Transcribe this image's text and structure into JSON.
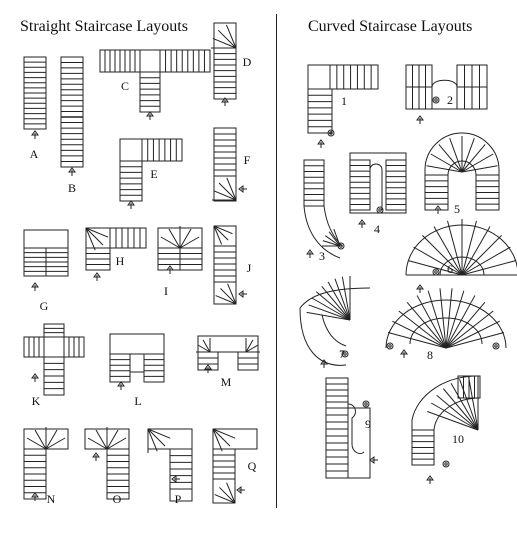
{
  "titles": {
    "straight": "Straight Staircase Layouts",
    "curved": "Curved Staircase Layouts"
  },
  "straight_labels": [
    "A",
    "B",
    "C",
    "D",
    "E",
    "F",
    "G",
    "H",
    "I",
    "J",
    "K",
    "L",
    "M",
    "N",
    "O",
    "P",
    "Q"
  ],
  "curved_labels": [
    "1",
    "2",
    "3",
    "4",
    "5",
    "6",
    "7",
    "8",
    "9",
    "10"
  ],
  "colors": {
    "ink": "#222222",
    "background": "#ffffff"
  },
  "icons": {
    "direction": "arrow-icon",
    "newel": "spiral-newel-icon"
  }
}
